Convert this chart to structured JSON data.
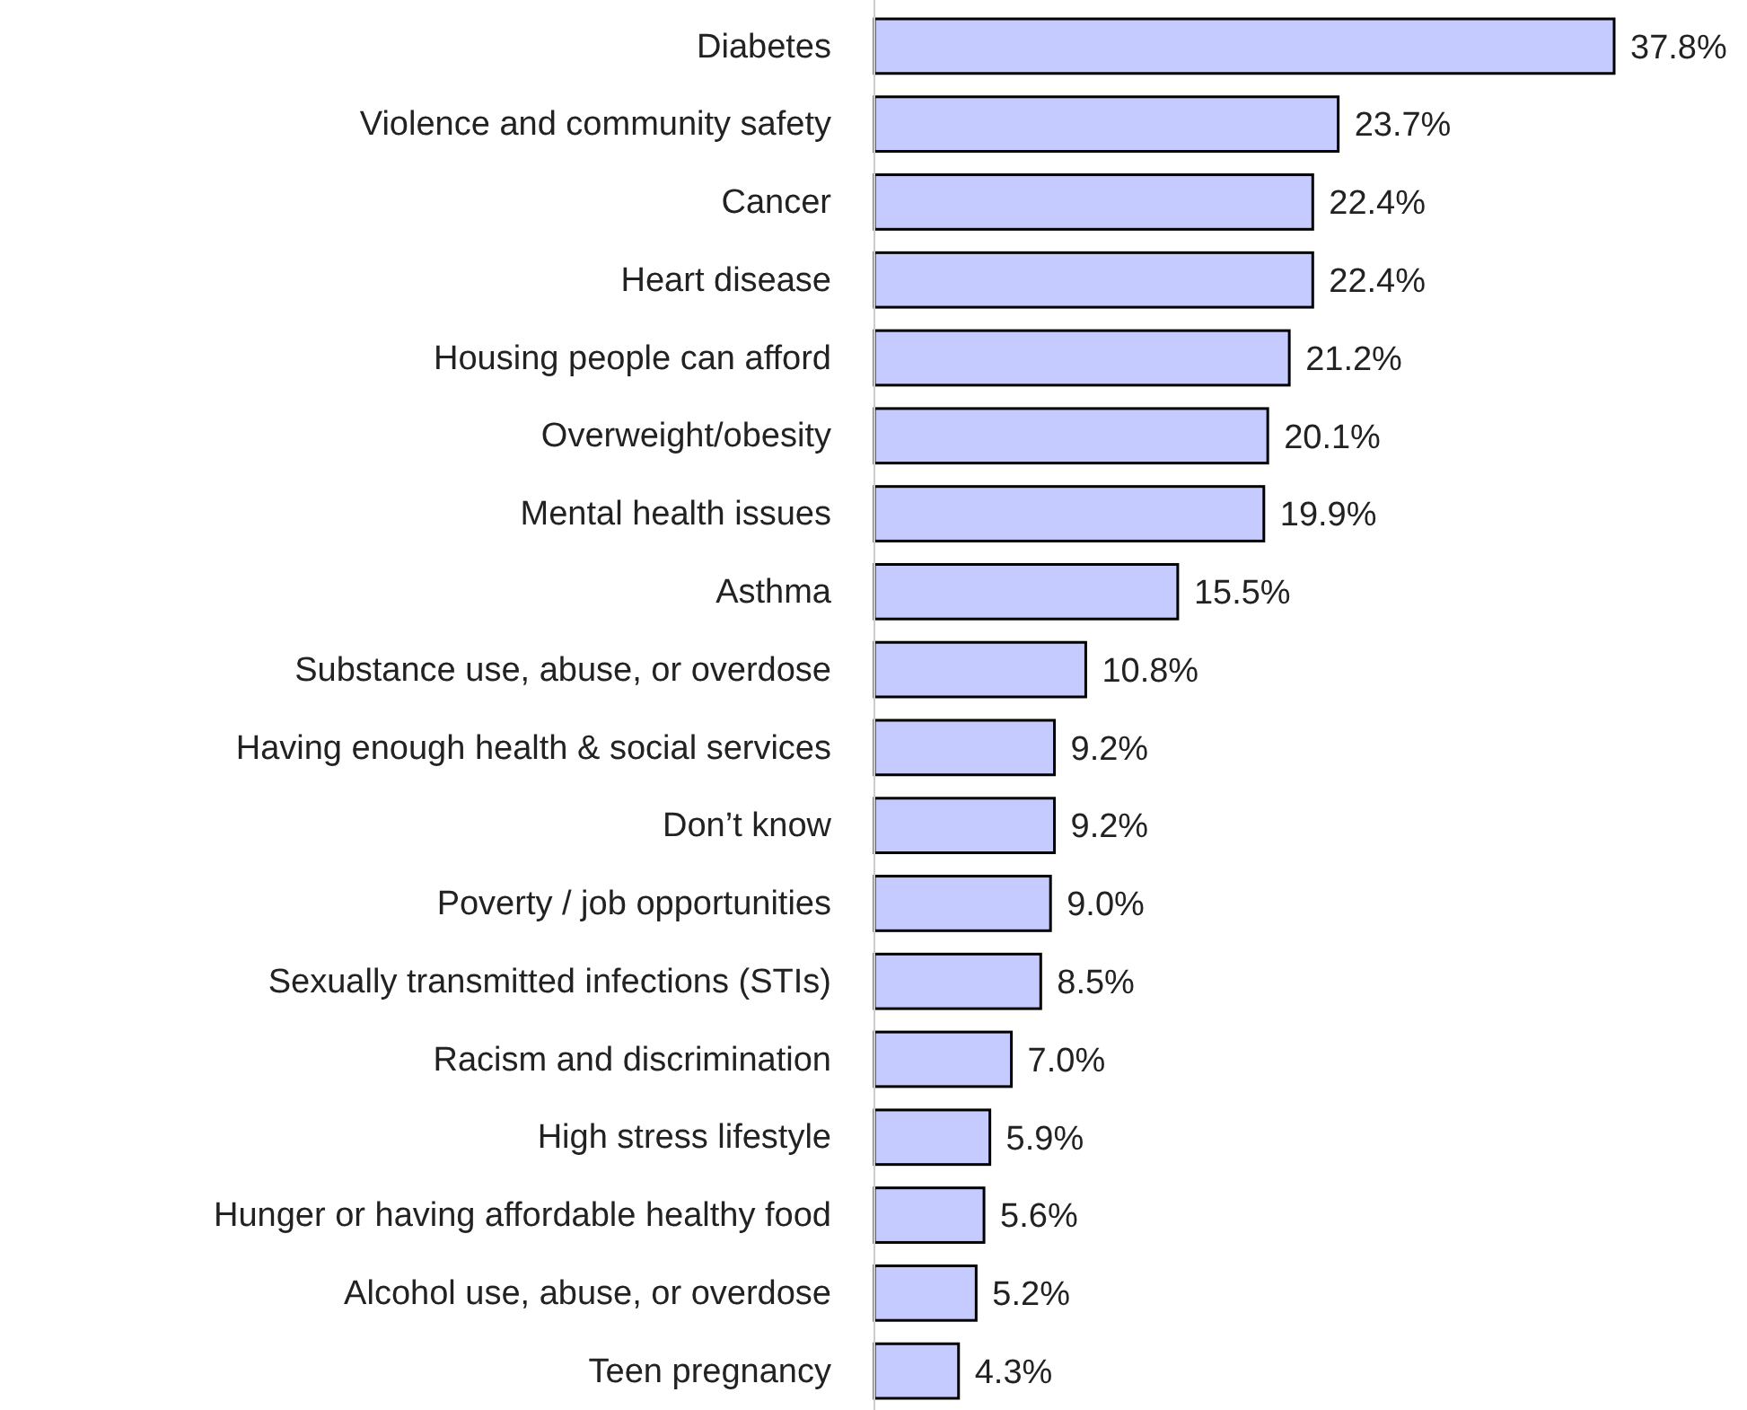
{
  "chart_data": {
    "type": "bar",
    "orientation": "horizontal",
    "categories": [
      "Diabetes",
      "Violence and community safety",
      "Cancer",
      "Heart disease",
      "Housing people can afford",
      "Overweight/obesity",
      "Mental health issues",
      "Asthma",
      "Substance use, abuse, or overdose",
      "Having enough health & social services",
      "Don’t know",
      "Poverty / job opportunities",
      "Sexually transmitted infections (STIs)",
      "Racism and discrimination",
      "High stress lifestyle",
      "Hunger or having affordable healthy food",
      "Alcohol use, abuse, or overdose",
      "Teen pregnancy"
    ],
    "values": [
      37.8,
      23.7,
      22.4,
      22.4,
      21.2,
      20.1,
      19.9,
      15.5,
      10.8,
      9.2,
      9.2,
      9.0,
      8.5,
      7.0,
      5.9,
      5.6,
      5.2,
      4.3
    ],
    "value_labels": [
      "37.8%",
      "23.7%",
      "22.4%",
      "22.4%",
      "21.2%",
      "20.1%",
      "19.9%",
      "15.5%",
      "10.8%",
      "9.2%",
      "9.2%",
      "9.0%",
      "8.5%",
      "7.0%",
      "5.9%",
      "5.6%",
      "5.2%",
      "4.3%"
    ],
    "color": "#c5cbff"
  }
}
